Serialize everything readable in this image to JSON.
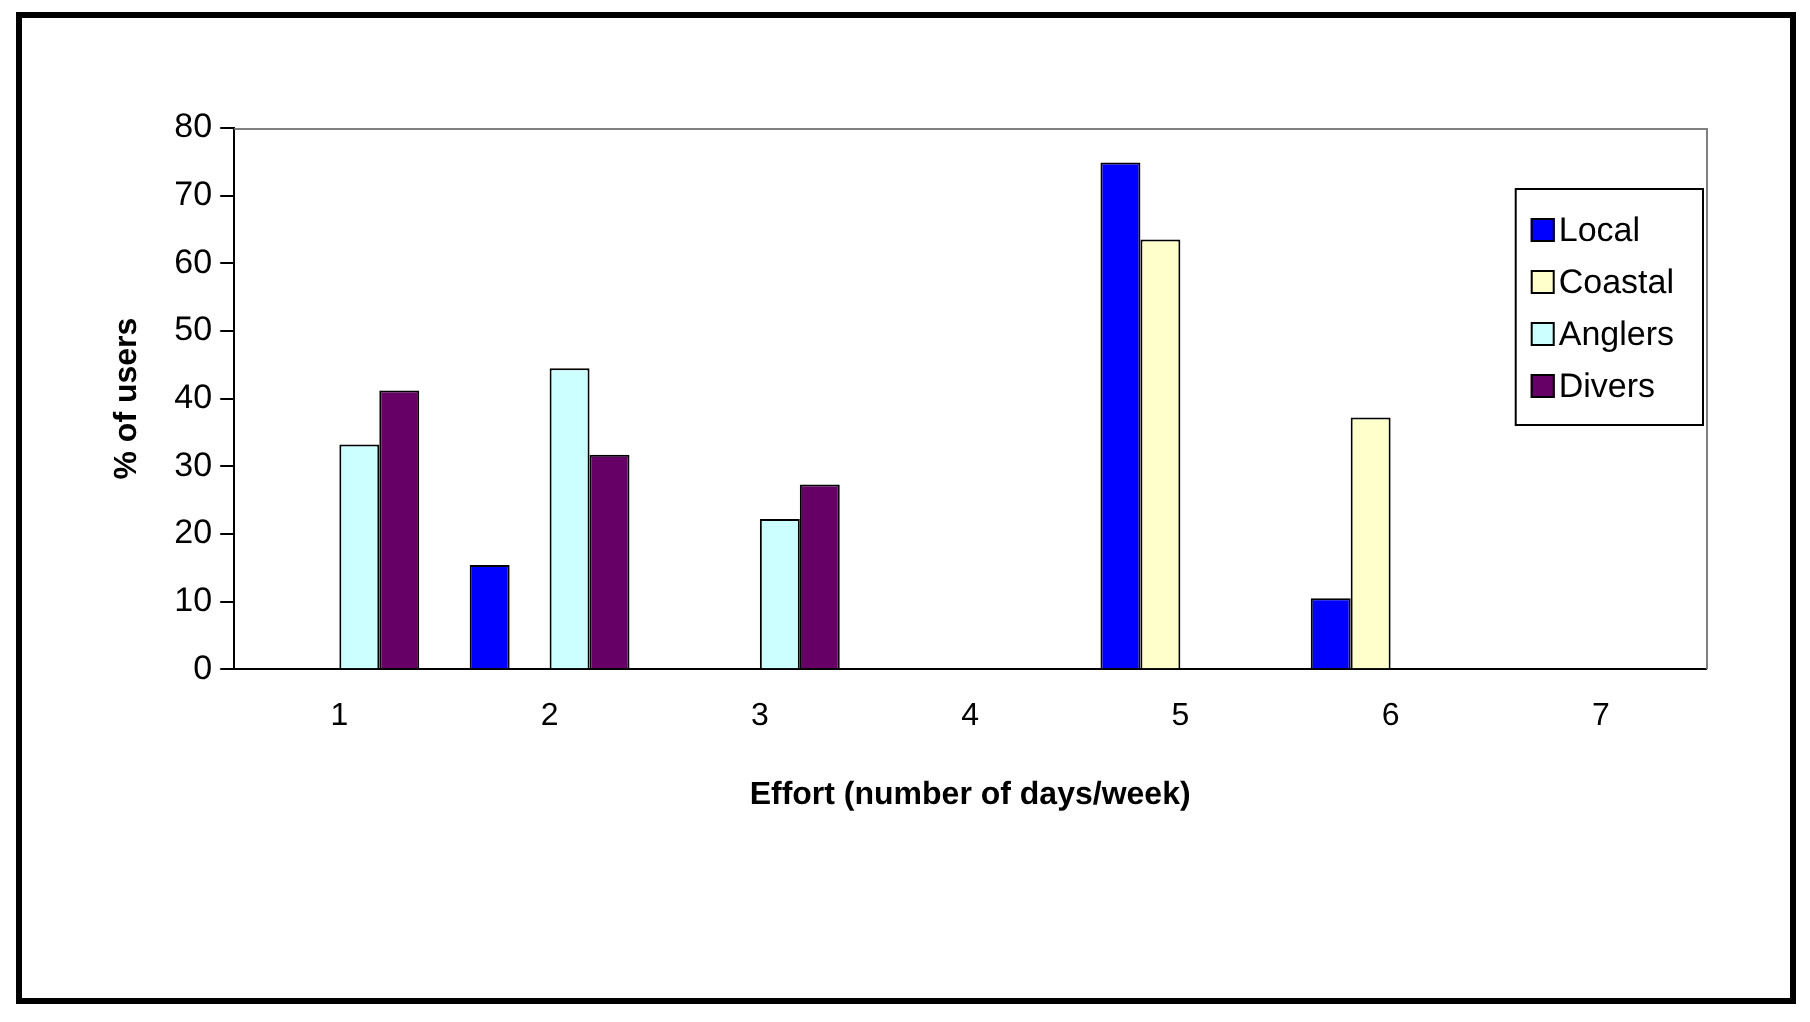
{
  "chart_data": {
    "type": "bar",
    "xlabel": "Effort (number of days/week)",
    "ylabel": "% of users",
    "categories": [
      "1",
      "2",
      "3",
      "4",
      "5",
      "6",
      "7"
    ],
    "series": [
      {
        "name": "Local",
        "color": "#0000ff",
        "values": [
          0,
          15.4,
          0,
          0,
          74.9,
          10.5,
          0
        ]
      },
      {
        "name": "Coastal",
        "color": "#ffffcc",
        "values": [
          0,
          0,
          0,
          0,
          63.5,
          37.2,
          0
        ]
      },
      {
        "name": "Anglers",
        "color": "#ccffff",
        "values": [
          33.2,
          44.5,
          22.2,
          0,
          0,
          0,
          0
        ]
      },
      {
        "name": "Divers",
        "color": "#660066",
        "values": [
          41.2,
          31.7,
          27.3,
          0,
          0,
          0,
          0
        ]
      }
    ],
    "ylim": [
      0,
      80
    ],
    "yticks": [
      0,
      10,
      20,
      30,
      40,
      50,
      60,
      70,
      80
    ],
    "grid": false,
    "legend": "top right"
  }
}
